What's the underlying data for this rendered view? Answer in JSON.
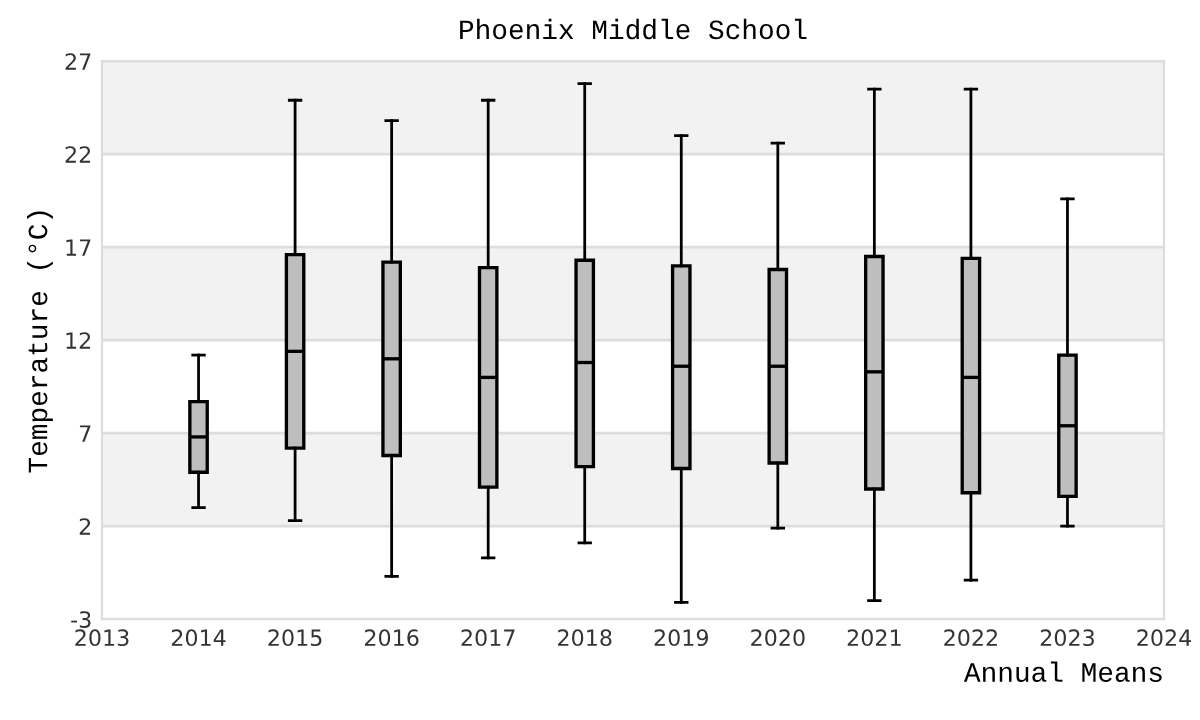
{
  "chart_data": {
    "type": "box",
    "title": "Phoenix Middle School",
    "xlabel": "Annual Means",
    "ylabel": "Temperature (°C)",
    "x": [
      2014,
      2015,
      2016,
      2017,
      2018,
      2019,
      2020,
      2021,
      2022,
      2023
    ],
    "color": "#bebebe",
    "boxes": [
      {
        "low": 3.0,
        "q1": 4.9,
        "median": 6.8,
        "q3": 8.7,
        "high": 11.2
      },
      {
        "low": 2.3,
        "q1": 6.2,
        "median": 11.4,
        "q3": 16.6,
        "high": 24.9
      },
      {
        "low": -0.7,
        "q1": 5.8,
        "median": 11.0,
        "q3": 16.2,
        "high": 23.8
      },
      {
        "low": 0.3,
        "q1": 4.1,
        "median": 10.0,
        "q3": 15.9,
        "high": 24.9
      },
      {
        "low": 1.1,
        "q1": 5.2,
        "median": 10.8,
        "q3": 16.3,
        "high": 25.8
      },
      {
        "low": -2.1,
        "q1": 5.1,
        "median": 10.6,
        "q3": 16.0,
        "high": 23.0
      },
      {
        "low": 1.9,
        "q1": 5.4,
        "median": 10.6,
        "q3": 15.8,
        "high": 22.6
      },
      {
        "low": -2.0,
        "q1": 4.0,
        "median": 10.3,
        "q3": 16.5,
        "high": 25.5
      },
      {
        "low": -0.9,
        "q1": 3.8,
        "median": 10.0,
        "q3": 16.4,
        "high": 25.5
      },
      {
        "low": 2.0,
        "q1": 3.6,
        "median": 7.4,
        "q3": 11.2,
        "high": 19.6
      }
    ],
    "xlim": [
      2013,
      2024
    ],
    "xticks": [
      2013,
      2014,
      2015,
      2016,
      2017,
      2018,
      2019,
      2020,
      2021,
      2022,
      2023,
      2024
    ],
    "ylim": [
      -3,
      27
    ],
    "yticks": [
      -3,
      2,
      7,
      12,
      17,
      22,
      27
    ],
    "bands": [
      {
        "axis": "y",
        "from": 2,
        "to": 7,
        "color": "#f2f2f2"
      },
      {
        "axis": "y",
        "from": 12,
        "to": 17,
        "color": "#f2f2f2"
      },
      {
        "axis": "y",
        "from": 22,
        "to": 27,
        "color": "#f2f2f2"
      }
    ],
    "grid": "y"
  }
}
